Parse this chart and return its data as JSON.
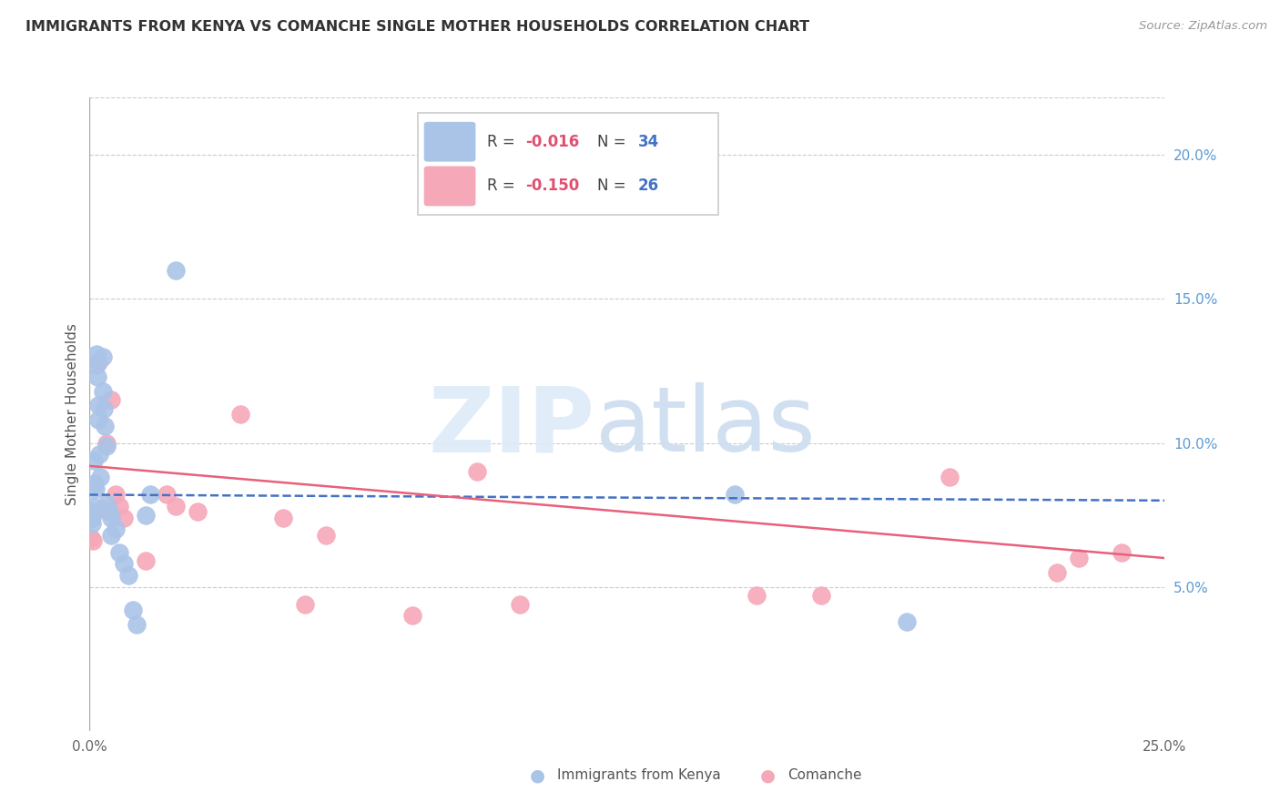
{
  "title": "IMMIGRANTS FROM KENYA VS COMANCHE SINGLE MOTHER HOUSEHOLDS CORRELATION CHART",
  "source": "Source: ZipAtlas.com",
  "ylabel": "Single Mother Households",
  "xlim": [
    0.0,
    0.25
  ],
  "ylim": [
    0.0,
    0.22
  ],
  "right_yticks": [
    0.05,
    0.1,
    0.15,
    0.2
  ],
  "right_yticklabels": [
    "5.0%",
    "10.0%",
    "15.0%",
    "20.0%"
  ],
  "xticks": [
    0.0,
    0.05,
    0.1,
    0.15,
    0.2,
    0.25
  ],
  "xticklabels": [
    "0.0%",
    "",
    "",
    "",
    "",
    "25.0%"
  ],
  "kenya_color": "#aac4e8",
  "comanche_color": "#f5a8b8",
  "kenya_line_color": "#4472c4",
  "comanche_line_color": "#e8607a",
  "kenya_R": -0.016,
  "kenya_N": 34,
  "comanche_R": -0.15,
  "comanche_N": 26,
  "kenya_x": [
    0.0004,
    0.0005,
    0.0006,
    0.0008,
    0.001,
    0.0012,
    0.0013,
    0.0015,
    0.0016,
    0.0018,
    0.002,
    0.002,
    0.0022,
    0.0025,
    0.003,
    0.003,
    0.0032,
    0.0035,
    0.004,
    0.004,
    0.0045,
    0.005,
    0.005,
    0.006,
    0.007,
    0.008,
    0.009,
    0.01,
    0.011,
    0.013,
    0.014,
    0.02,
    0.15,
    0.19
  ],
  "kenya_y": [
    0.076,
    0.074,
    0.072,
    0.078,
    0.094,
    0.086,
    0.084,
    0.131,
    0.127,
    0.123,
    0.113,
    0.108,
    0.096,
    0.088,
    0.13,
    0.118,
    0.112,
    0.106,
    0.099,
    0.079,
    0.076,
    0.074,
    0.068,
    0.07,
    0.062,
    0.058,
    0.054,
    0.042,
    0.037,
    0.075,
    0.082,
    0.16,
    0.082,
    0.038
  ],
  "comanche_x": [
    0.0004,
    0.0008,
    0.002,
    0.003,
    0.004,
    0.005,
    0.006,
    0.007,
    0.008,
    0.013,
    0.018,
    0.02,
    0.025,
    0.035,
    0.045,
    0.05,
    0.055,
    0.075,
    0.09,
    0.1,
    0.155,
    0.17,
    0.2,
    0.225,
    0.23,
    0.24
  ],
  "comanche_y": [
    0.067,
    0.066,
    0.128,
    0.077,
    0.1,
    0.115,
    0.082,
    0.078,
    0.074,
    0.059,
    0.082,
    0.078,
    0.076,
    0.11,
    0.074,
    0.044,
    0.068,
    0.04,
    0.09,
    0.044,
    0.047,
    0.047,
    0.088,
    0.055,
    0.06,
    0.062
  ],
  "kenya_line_x0": 0.0,
  "kenya_line_y0": 0.082,
  "kenya_line_x1": 0.25,
  "kenya_line_y1": 0.08,
  "comanche_line_x0": 0.0,
  "comanche_line_y0": 0.092,
  "comanche_line_x1": 0.25,
  "comanche_line_y1": 0.06
}
